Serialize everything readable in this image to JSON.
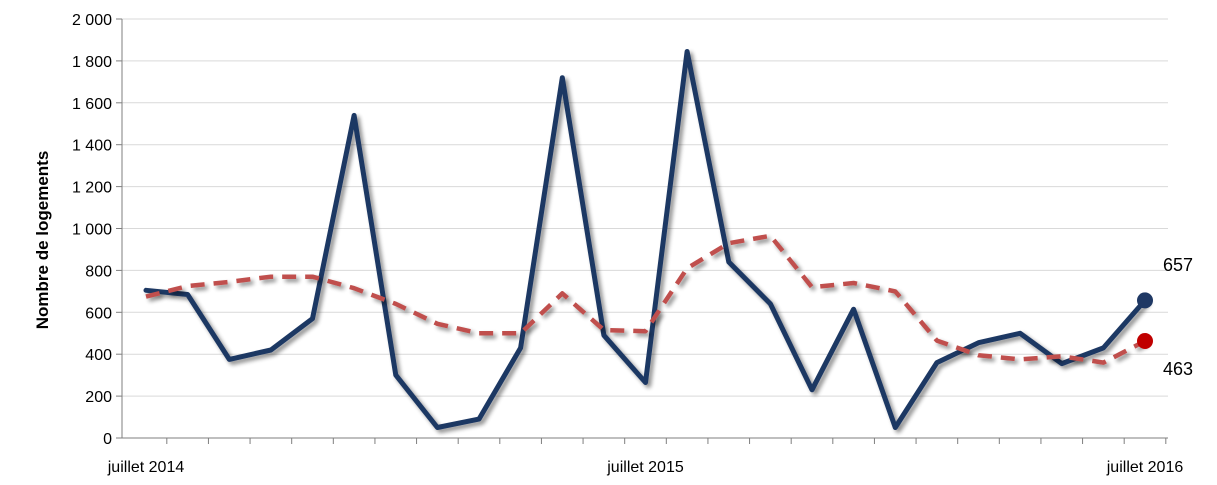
{
  "chart_data": {
    "type": "line",
    "ylabel": "Nombre de logements",
    "xlabel": "",
    "ylim": [
      0,
      2000
    ],
    "yticks": [
      0,
      200,
      400,
      600,
      800,
      1000,
      1200,
      1400,
      1600,
      1800,
      2000
    ],
    "ytick_labels": [
      "0",
      "200",
      "400",
      "600",
      "800",
      "1 000",
      "1 200",
      "1 400",
      "1 600",
      "1 800",
      "2 000"
    ],
    "x_tick_labels": [
      {
        "label": "juillet 2014",
        "index": 0
      },
      {
        "label": "juillet 2015",
        "index": 12
      },
      {
        "label": "juillet 2016",
        "index": 24
      }
    ],
    "grid": "horizontal",
    "legend": "none",
    "series": [
      {
        "style": "solid",
        "color": "#1f3864",
        "values": [
          705,
          685,
          375,
          420,
          570,
          1540,
          300,
          50,
          90,
          430,
          1720,
          490,
          265,
          1845,
          840,
          640,
          230,
          615,
          50,
          360,
          455,
          500,
          355,
          430,
          657
        ],
        "end_label": "657"
      },
      {
        "style": "dashed",
        "color": "#c0504d",
        "values": [
          675,
          725,
          745,
          770,
          770,
          715,
          640,
          545,
          500,
          500,
          690,
          515,
          510,
          810,
          930,
          965,
          720,
          740,
          700,
          465,
          395,
          375,
          390,
          360,
          463
        ],
        "end_label": "463"
      }
    ]
  }
}
